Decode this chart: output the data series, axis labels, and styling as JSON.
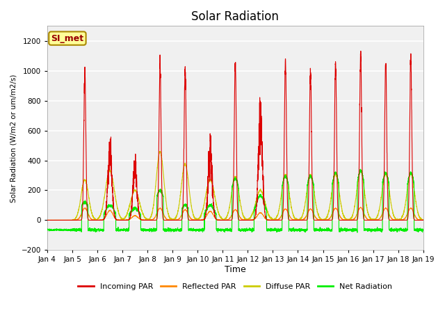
{
  "title": "Solar Radiation",
  "ylabel": "Solar Radiation (W/m2 or um/m2/s)",
  "xlabel": "Time",
  "ylim": [
    -200,
    1300
  ],
  "yticks": [
    -200,
    0,
    200,
    400,
    600,
    800,
    1000,
    1200
  ],
  "xtick_labels": [
    "Jan 4",
    "Jan 5",
    "Jan 6",
    "Jan 7",
    "Jan 8",
    "Jan 9",
    "Jan 10",
    "Jan 11",
    "Jan 12",
    "Jan 13",
    "Jan 14",
    "Jan 15",
    "Jan 16",
    "Jan 17",
    "Jan 18",
    "Jan 19"
  ],
  "colors": {
    "incoming": "#dd0000",
    "reflected": "#ff8800",
    "diffuse": "#cccc00",
    "net": "#00ee00"
  },
  "legend_labels": [
    "Incoming PAR",
    "Reflected PAR",
    "Diffuse PAR",
    "Net Radiation"
  ],
  "annotation_text": "SI_met",
  "annotation_facecolor": "#ffff99",
  "annotation_edgecolor": "#aa8800",
  "annotation_textcolor": "#990000",
  "background_color": "#e8e8e8",
  "plot_bg": "#f0f0f0",
  "grid_color": "#ffffff",
  "linewidth": 0.8,
  "n_days": 15,
  "pts_per_day": 288,
  "daily_peaks_incoming": [
    0,
    1000,
    470,
    360,
    1040,
    1010,
    470,
    1050,
    670,
    1060,
    1010,
    1060,
    1140,
    1060,
    1080
  ],
  "daily_peaks_diffuse": [
    0,
    270,
    330,
    200,
    460,
    375,
    270,
    290,
    200,
    305,
    305,
    305,
    330,
    310,
    310
  ],
  "daily_peaks_net": [
    0,
    120,
    100,
    80,
    200,
    100,
    100,
    280,
    165,
    295,
    295,
    315,
    330,
    315,
    315
  ],
  "daily_peaks_reflected": [
    0,
    80,
    65,
    30,
    80,
    70,
    60,
    70,
    50,
    75,
    75,
    80,
    85,
    80,
    80
  ],
  "night_net": -65,
  "sharp_power": 8,
  "diffuse_power": 2
}
